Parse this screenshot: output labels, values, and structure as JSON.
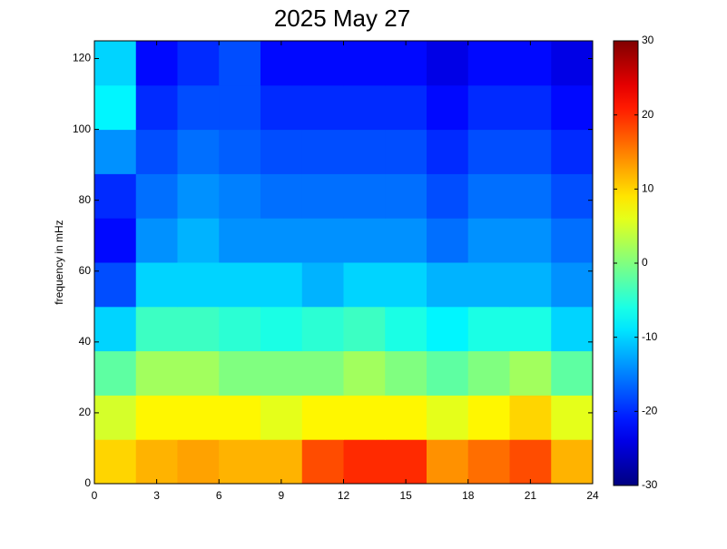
{
  "chart_data": {
    "type": "heatmap",
    "title": "2025 May 27",
    "ylabel": "frequency in mHz",
    "x": [
      1,
      3,
      5,
      7,
      9,
      11,
      13,
      15,
      17,
      19,
      21,
      23
    ],
    "y": [
      6.25,
      18.75,
      31.25,
      43.75,
      56.25,
      68.75,
      81.25,
      93.75,
      106.25,
      118.75
    ],
    "z": [
      [
        10,
        12,
        13,
        12,
        12,
        18,
        20,
        20,
        14,
        16,
        18,
        12
      ],
      [
        5,
        8,
        8,
        8,
        6,
        8,
        8,
        8,
        6,
        8,
        10,
        6
      ],
      [
        -2,
        2,
        2,
        0,
        0,
        0,
        2,
        0,
        -2,
        0,
        2,
        -2
      ],
      [
        -10,
        -4,
        -4,
        -5,
        -6,
        -5,
        -4,
        -6,
        -8,
        -6,
        -6,
        -10
      ],
      [
        -18,
        -10,
        -10,
        -10,
        -10,
        -12,
        -10,
        -10,
        -12,
        -12,
        -12,
        -14
      ],
      [
        -22,
        -14,
        -12,
        -14,
        -14,
        -14,
        -14,
        -14,
        -16,
        -14,
        -14,
        -16
      ],
      [
        -20,
        -16,
        -14,
        -15,
        -16,
        -16,
        -16,
        -16,
        -18,
        -16,
        -16,
        -18
      ],
      [
        -14,
        -18,
        -16,
        -17,
        -18,
        -18,
        -18,
        -18,
        -20,
        -18,
        -18,
        -20
      ],
      [
        -8,
        -20,
        -18,
        -18,
        -20,
        -20,
        -20,
        -20,
        -22,
        -20,
        -20,
        -22
      ],
      [
        -10,
        -22,
        -20,
        -18,
        -22,
        -22,
        -22,
        -22,
        -24,
        -22,
        -22,
        -24
      ]
    ],
    "xlim": [
      0,
      24
    ],
    "xticks": [
      0,
      3,
      6,
      9,
      12,
      15,
      18,
      21,
      24
    ],
    "ylim": [
      0,
      125
    ],
    "yticks": [
      0,
      20,
      40,
      60,
      80,
      100,
      120
    ],
    "colormap": "jet",
    "clim": [
      -30,
      30
    ],
    "cticks": [
      -30,
      -20,
      -10,
      0,
      10,
      20,
      30
    ]
  }
}
